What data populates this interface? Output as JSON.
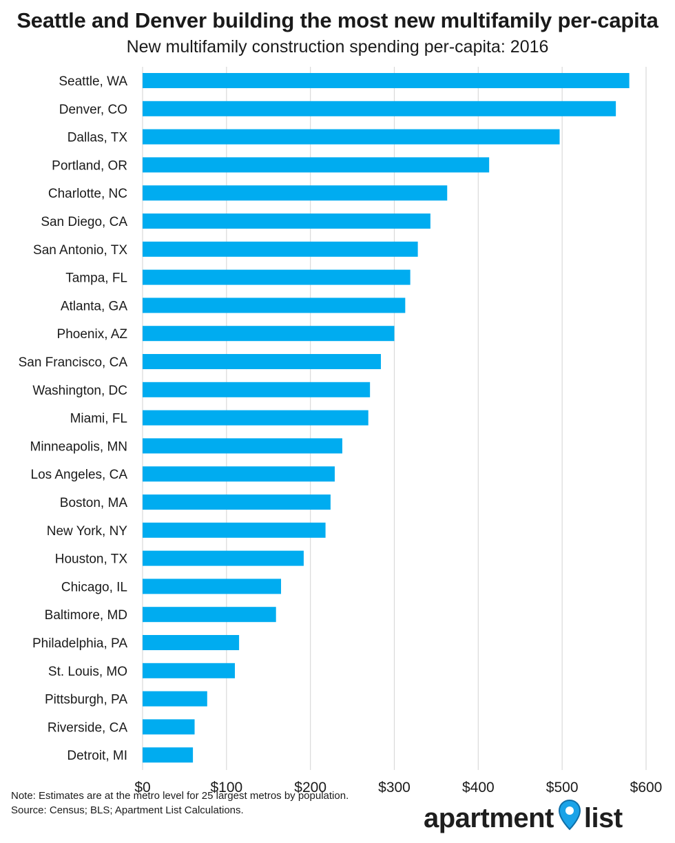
{
  "title": "Seattle and Denver building the most new multifamily per-capita",
  "subtitle": "New multifamily construction spending per-capita: 2016",
  "note": {
    "line1": "Note: Estimates are at the metro level for 25 largest metros by population.",
    "line2": "Source: Census; BLS; Apartment List Calculations."
  },
  "logo": {
    "left": "apartment",
    "right": "list",
    "pin_color": "#1aa3e8"
  },
  "colors": {
    "bar": "#00acf0",
    "grid": "#d9d9d9"
  },
  "chart_data": {
    "type": "bar",
    "orientation": "horizontal",
    "title": "Seattle and Denver building the most new multifamily per-capita",
    "subtitle": "New multifamily construction spending per-capita: 2016",
    "categories": [
      "Seattle, WA",
      "Denver, CO",
      "Dallas, TX",
      "Portland, OR",
      "Charlotte, NC",
      "San Diego, CA",
      "San Antonio, TX",
      "Tampa, FL",
      "Atlanta, GA",
      "Phoenix, AZ",
      "San Francisco, CA",
      "Washington, DC",
      "Miami, FL",
      "Minneapolis, MN",
      "Los Angeles, CA",
      "Boston, MA",
      "New York, NY",
      "Houston, TX",
      "Chicago, IL",
      "Baltimore, MD",
      "Philadelphia, PA",
      "St. Louis, MO",
      "Pittsburgh, PA",
      "Riverside, CA",
      "Detroit, MI"
    ],
    "values": [
      580,
      564,
      497,
      413,
      363,
      343,
      328,
      319,
      313,
      300,
      284,
      271,
      269,
      238,
      229,
      224,
      218,
      192,
      165,
      159,
      115,
      110,
      77,
      62,
      60
    ],
    "xlim": [
      0,
      600
    ],
    "ticks": [
      0,
      100,
      200,
      300,
      400,
      500,
      600
    ],
    "tick_labels": [
      "$0",
      "$100",
      "$200",
      "$300",
      "$400",
      "$500",
      "$600"
    ],
    "grid": true,
    "legend": "none"
  }
}
